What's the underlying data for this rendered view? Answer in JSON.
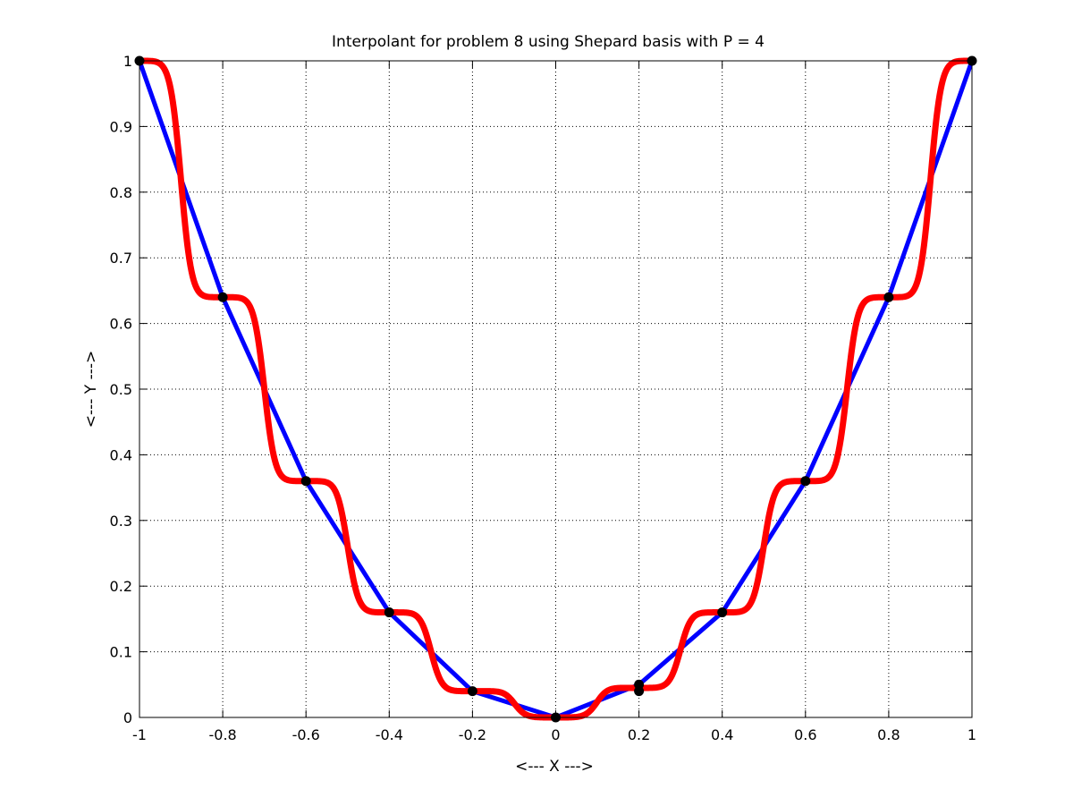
{
  "chart_data": {
    "type": "line",
    "title": "Interpolant for problem 8 using Shepard basis with P = 4",
    "xlabel": "<--- X --->",
    "ylabel": "<--- Y --->",
    "xlim": [
      -1,
      1
    ],
    "ylim": [
      0,
      1
    ],
    "x_ticks": [
      -1,
      -0.8,
      -0.6,
      -0.4,
      -0.2,
      0,
      0.2,
      0.4,
      0.6,
      0.8,
      1
    ],
    "x_tick_labels": [
      "-1",
      "-0.8",
      "-0.6",
      "-0.4",
      "-0.2",
      "0",
      "0.2",
      "0.4",
      "0.6",
      "0.8",
      "1"
    ],
    "y_ticks": [
      0,
      0.1,
      0.2,
      0.3,
      0.4,
      0.5,
      0.6,
      0.7,
      0.8,
      0.9,
      1
    ],
    "y_tick_labels": [
      "0",
      "0.1",
      "0.2",
      "0.3",
      "0.4",
      "0.5",
      "0.6",
      "0.7",
      "0.8",
      "0.9",
      "1"
    ],
    "grid": true,
    "colors": {
      "linear": "#0000ff",
      "shepard": "#ff0000",
      "points": "#000000"
    },
    "series": [
      {
        "style": "linear",
        "x": [
          -1,
          -0.8,
          -0.6,
          -0.4,
          -0.2,
          0,
          0.2,
          0.4,
          0.6,
          0.8,
          1
        ],
        "y": [
          1,
          0.64,
          0.36,
          0.16,
          0.04,
          0,
          0.05,
          0.16,
          0.36,
          0.64,
          1
        ]
      },
      {
        "style": "shepard",
        "x": [
          -1,
          -0.8,
          -0.6,
          -0.4,
          -0.2,
          0,
          0.2,
          0.4,
          0.6,
          0.8,
          1
        ],
        "y": [
          1,
          0.64,
          0.36,
          0.16,
          0.04,
          0,
          0.045,
          0.16,
          0.36,
          0.64,
          1
        ],
        "power": 4
      }
    ],
    "points": [
      {
        "x": -1,
        "y": 1
      },
      {
        "x": -0.8,
        "y": 0.64
      },
      {
        "x": -0.6,
        "y": 0.36
      },
      {
        "x": -0.4,
        "y": 0.16
      },
      {
        "x": -0.2,
        "y": 0.04
      },
      {
        "x": 0,
        "y": 0
      },
      {
        "x": 0.2,
        "y": 0.04
      },
      {
        "x": 0.2,
        "y": 0.05
      },
      {
        "x": 0.4,
        "y": 0.16
      },
      {
        "x": 0.6,
        "y": 0.36
      },
      {
        "x": 0.8,
        "y": 0.64
      },
      {
        "x": 1,
        "y": 1
      }
    ]
  }
}
